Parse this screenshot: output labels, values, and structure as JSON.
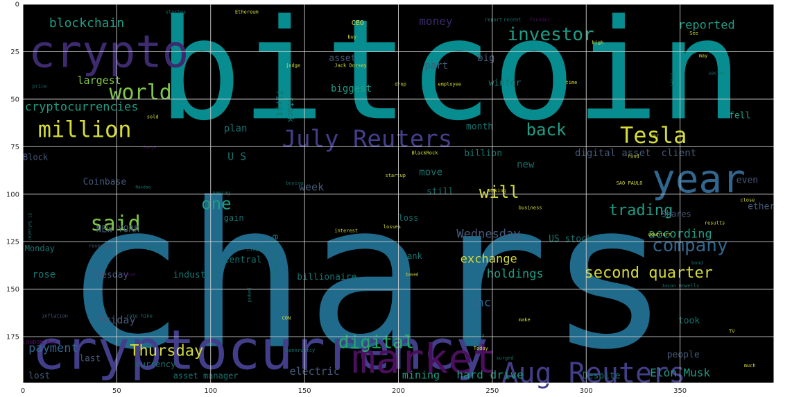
{
  "colors": {
    "background": "#ffffff",
    "plot_bg": "#000000",
    "grid": "#cfcfcf",
    "tick_text": "#262626",
    "palette": {
      "teal": "#078d8f",
      "steel": "#206a8c",
      "indigo": "#433e8a",
      "purple": "#3e2a6e",
      "dpurple": "#4b0f5e",
      "green": "#27a86a",
      "lime": "#7fc747",
      "yellow": "#d6dc38",
      "blue": "#31678f",
      "mint": "#1f9d86",
      "dteal": "#16736f",
      "dgrey": "#455a7a"
    }
  },
  "x_ticks": [
    "0",
    "50",
    "100",
    "150",
    "200",
    "250",
    "300",
    "350"
  ],
  "y_ticks": [
    "0",
    "25",
    "50",
    "75",
    "100",
    "125",
    "150",
    "175"
  ],
  "words": [
    {
      "text": "bitcoin",
      "color": "teal"
    },
    {
      "text": "chars",
      "color": "steel"
    },
    {
      "text": "cryptocurrency",
      "color": "indigo"
    },
    {
      "text": "crypto",
      "color": "purple"
    },
    {
      "text": "market",
      "color": "dpurple"
    },
    {
      "text": "year",
      "color": "blue"
    },
    {
      "text": "Aug Reuters",
      "color": "indigo"
    },
    {
      "text": "July Reuters",
      "color": "indigo"
    },
    {
      "text": "million",
      "color": "yellow"
    },
    {
      "text": "Tesla",
      "color": "yellow"
    },
    {
      "text": "world",
      "color": "lime"
    },
    {
      "text": "said",
      "color": "lime"
    },
    {
      "text": "investor",
      "color": "mint"
    },
    {
      "text": "company",
      "color": "blue"
    },
    {
      "text": "digital",
      "color": "green"
    },
    {
      "text": "back",
      "color": "mint"
    },
    {
      "text": "one",
      "color": "mint"
    },
    {
      "text": "will",
      "color": "yellow"
    },
    {
      "text": "Thursday",
      "color": "yellow"
    },
    {
      "text": "second quarter",
      "color": "yellow"
    },
    {
      "text": "trading",
      "color": "mint"
    },
    {
      "text": "blockchain",
      "color": "mint"
    },
    {
      "text": "cryptocurrencies",
      "color": "mint"
    },
    {
      "text": "money",
      "color": "purple"
    },
    {
      "text": "reported",
      "color": "mint"
    },
    {
      "text": "according",
      "color": "mint"
    },
    {
      "text": "exchange",
      "color": "yellow"
    },
    {
      "text": "holdings",
      "color": "mint"
    },
    {
      "text": "payment",
      "color": "blue"
    },
    {
      "text": "Wednesday",
      "color": "dgrey"
    },
    {
      "text": "Inc",
      "color": "blue"
    },
    {
      "text": "Elon Musk",
      "color": "mint"
    },
    {
      "text": "hard drive",
      "color": "mint"
    },
    {
      "text": "mining",
      "color": "mint"
    },
    {
      "text": "electric",
      "color": "dgrey"
    },
    {
      "text": "Friday",
      "color": "dgrey"
    },
    {
      "text": "largest",
      "color": "lime"
    },
    {
      "text": "biggest",
      "color": "mint"
    },
    {
      "text": "part",
      "color": "dgrey"
    },
    {
      "text": "big",
      "color": "dgrey"
    },
    {
      "text": "winter",
      "color": "dteal"
    },
    {
      "text": "month",
      "color": "dteal"
    },
    {
      "text": "billion",
      "color": "dteal"
    },
    {
      "text": "plan",
      "color": "dteal"
    },
    {
      "text": "U S",
      "color": "dteal"
    },
    {
      "text": "week",
      "color": "dgrey"
    },
    {
      "text": "earnings",
      "color": "dteal"
    },
    {
      "text": "move",
      "color": "dteal"
    },
    {
      "text": "still",
      "color": "dteal"
    },
    {
      "text": "new",
      "color": "dteal"
    },
    {
      "text": "digital asset",
      "color": "dgrey"
    },
    {
      "text": "client",
      "color": "dgrey"
    },
    {
      "text": "fell",
      "color": "mint"
    },
    {
      "text": "even",
      "color": "dgrey"
    },
    {
      "text": "ether",
      "color": "dgrey"
    },
    {
      "text": "Coinbase",
      "color": "dgrey"
    },
    {
      "text": "NEW YORK",
      "color": "dgrey"
    },
    {
      "text": "Central",
      "color": "dteal"
    },
    {
      "text": "industry",
      "color": "dteal"
    },
    {
      "text": "Tuesday",
      "color": "dgrey"
    },
    {
      "text": "rose",
      "color": "dteal"
    },
    {
      "text": "billionaire",
      "color": "dteal"
    },
    {
      "text": "US stocks",
      "color": "dteal"
    },
    {
      "text": "bank",
      "color": "dteal"
    },
    {
      "text": "took",
      "color": "dteal"
    },
    {
      "text": "people",
      "color": "dgrey"
    },
    {
      "text": "last",
      "color": "dgrey"
    },
    {
      "text": "lost",
      "color": "dgrey"
    },
    {
      "text": "currency",
      "color": "dteal"
    },
    {
      "text": "asset manager",
      "color": "dteal"
    },
    {
      "text": "Despite",
      "color": "dteal"
    },
    {
      "text": "first",
      "color": "dteal"
    },
    {
      "text": "asset",
      "color": "dgrey"
    },
    {
      "text": "stock",
      "color": "dteal"
    },
    {
      "text": "gain",
      "color": "dteal"
    },
    {
      "text": "loss",
      "color": "dteal"
    },
    {
      "text": "Monday",
      "color": "dteal"
    },
    {
      "text": "Block",
      "color": "dgrey"
    },
    {
      "text": "Shares",
      "color": "dgrey"
    },
    {
      "text": "CEO",
      "color": "yellow"
    },
    {
      "text": "Jack Dorsey",
      "color": "yellow"
    },
    {
      "text": "employee",
      "color": "yellow"
    },
    {
      "text": "BlackRock",
      "color": "yellow"
    },
    {
      "text": "judge",
      "color": "yellow"
    },
    {
      "text": "drop",
      "color": "yellow"
    },
    {
      "text": "stories",
      "color": "dteal"
    },
    {
      "text": "Ethereum",
      "color": "yellow"
    },
    {
      "text": "price",
      "color": "dteal"
    },
    {
      "text": "sold",
      "color": "yellow"
    },
    {
      "text": "buying",
      "color": "dteal"
    },
    {
      "text": "startup",
      "color": "yellow"
    },
    {
      "text": "gaming",
      "color": "dteal"
    },
    {
      "text": "interest",
      "color": "yellow"
    },
    {
      "text": "losses",
      "color": "yellow"
    },
    {
      "text": "quarter",
      "color": "dteal"
    },
    {
      "text": "Insider",
      "color": "dteal"
    },
    {
      "text": "revealed",
      "color": "dgrey"
    },
    {
      "text": "rate hike",
      "color": "dteal"
    },
    {
      "text": "inflation",
      "color": "dgrey"
    },
    {
      "text": "LONDON Aug",
      "color": "dpurple"
    },
    {
      "text": "CON",
      "color": "yellow"
    },
    {
      "text": "bankruptcy",
      "color": "dteal"
    },
    {
      "text": "surged",
      "color": "dteal"
    },
    {
      "text": "country",
      "color": "dteal"
    },
    {
      "text": "make",
      "color": "yellow"
    },
    {
      "text": "business",
      "color": "yellow"
    },
    {
      "text": "making",
      "color": "yellow"
    },
    {
      "text": "SAO PAULO",
      "color": "yellow"
    },
    {
      "text": "results",
      "color": "yellow"
    },
    {
      "text": "close",
      "color": "yellow"
    },
    {
      "text": "downturn",
      "color": "yellow"
    },
    {
      "text": "bond",
      "color": "dteal"
    },
    {
      "text": "Jason Howells",
      "color": "dteal"
    },
    {
      "text": "fund",
      "color": "yellow"
    },
    {
      "text": "car",
      "color": "yellow"
    },
    {
      "text": "time",
      "color": "yellow"
    },
    {
      "text": "high",
      "color": "yellow"
    },
    {
      "text": "report",
      "color": "dteal"
    },
    {
      "text": "recent",
      "color": "dteal"
    },
    {
      "text": "buy",
      "color": "yellow"
    },
    {
      "text": "much",
      "color": "yellow"
    },
    {
      "text": "TV",
      "color": "yellow"
    },
    {
      "text": "Today",
      "color": "yellow"
    },
    {
      "text": "El Salvador",
      "color": "dteal"
    },
    {
      "text": "Nasdaq",
      "color": "dteal"
    },
    {
      "text": "based",
      "color": "yellow"
    },
    {
      "text": "jumped",
      "color": "dteal"
    },
    {
      "text": "charge",
      "color": "dpurple"
    },
    {
      "text": "second",
      "color": "dpurple"
    },
    {
      "text": "Founder",
      "color": "dpurple"
    },
    {
      "text": "may",
      "color": "yellow"
    },
    {
      "text": "See",
      "color": "yellow"
    },
    {
      "text": "chief",
      "color": "dteal"
    },
    {
      "text": "sector",
      "color": "dteal"
    }
  ]
}
